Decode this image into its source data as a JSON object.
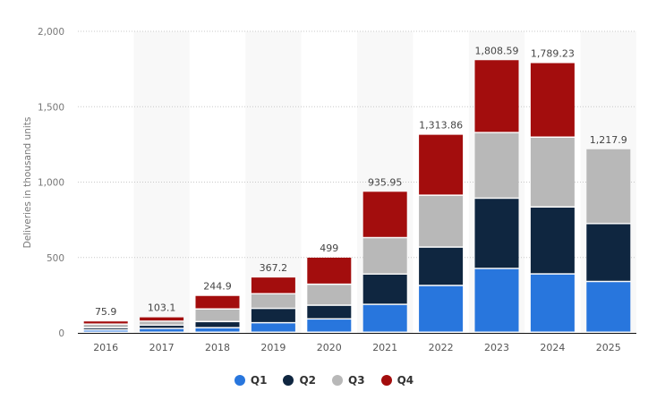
{
  "chart_data": {
    "type": "bar",
    "stacked": true,
    "ylabel": "Deliveries in thousand units",
    "xlabel": "",
    "ylim": [
      0,
      2000
    ],
    "yticks": [
      0,
      500,
      1000,
      1500,
      2000
    ],
    "ytick_labels": [
      "0",
      "500",
      "1,000",
      "1,500",
      "2,000"
    ],
    "grid": true,
    "legend": "bottom",
    "categories": [
      "2016",
      "2017",
      "2018",
      "2019",
      "2020",
      "2021",
      "2022",
      "2023",
      "2024",
      "2025"
    ],
    "totals": [
      "75.9",
      "103.1",
      "244.9",
      "367.2",
      "499",
      "935.95",
      "1,313.86",
      "1,808.59",
      "1,789.23",
      "1,217.9"
    ],
    "series": [
      {
        "name": "Q1",
        "color": "#2876dd",
        "values": [
          14.8,
          25.05,
          29.98,
          63.0,
          88.4,
          184.8,
          310.05,
          422.88,
          386.81,
          336.68
        ]
      },
      {
        "name": "Q2",
        "color": "#0f2640",
        "values": [
          14.4,
          22.03,
          40.74,
          95.2,
          90.65,
          201.25,
          254.7,
          466.14,
          443.96,
          384.12
        ]
      },
      {
        "name": "Q3",
        "color": "#b8b8b8",
        "values": [
          24.5,
          26.15,
          83.5,
          97.0,
          139.3,
          241.3,
          343.83,
          435.06,
          462.89,
          497.1
        ]
      },
      {
        "name": "Q4",
        "color": "#a30d0d",
        "values": [
          22.2,
          29.87,
          90.7,
          112.0,
          180.57,
          308.6,
          405.28,
          484.51,
          495.57,
          null
        ]
      }
    ]
  }
}
